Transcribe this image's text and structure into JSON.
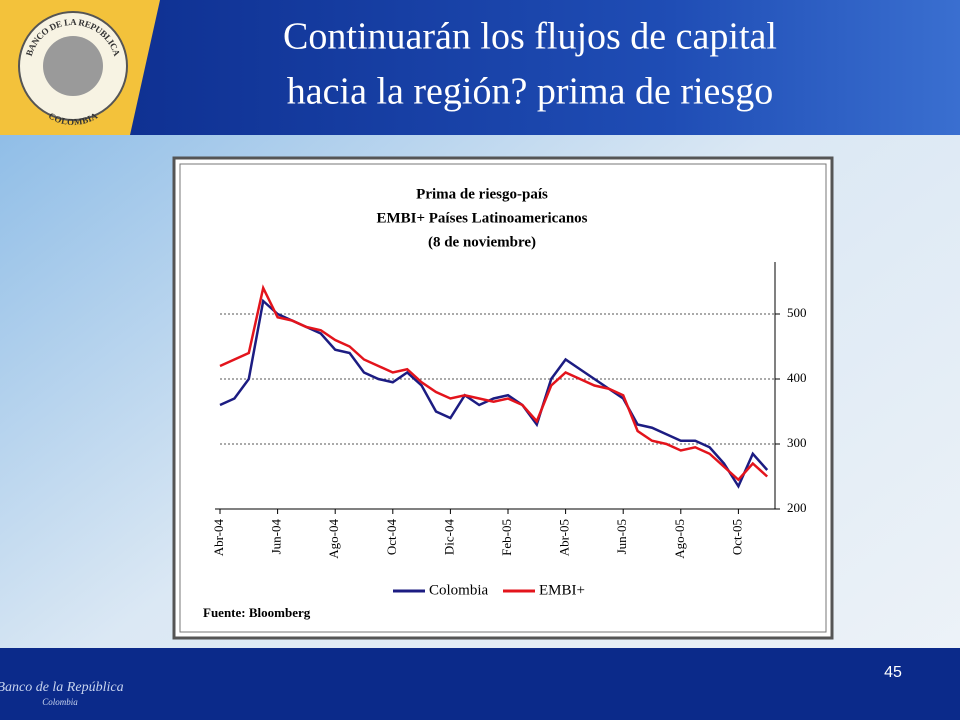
{
  "slide": {
    "title": [
      "Continuarán los flujos de capital",
      "hacia la región? prima de riesgo"
    ],
    "page_number": "45",
    "logo": {
      "top": "BANCO DE LA REPUBLICA",
      "bottom": "COLOMBIA"
    },
    "footer": [
      "Banco de la República",
      "Colombia"
    ]
  },
  "chart_data": {
    "type": "line",
    "title": [
      "Prima de riesgo-país",
      "EMBI+ Países Latinoamericanos",
      "(8 de noviembre)"
    ],
    "source": "Fuente: Bloomberg",
    "categories": [
      "Abr-04",
      null,
      null,
      null,
      "Jun-04",
      null,
      null,
      null,
      "Ago-04",
      null,
      null,
      null,
      "Oct-04",
      null,
      null,
      null,
      "Dic-04",
      null,
      null,
      null,
      "Feb-05",
      null,
      null,
      null,
      "Abr-05",
      null,
      null,
      null,
      "Jun-05",
      null,
      null,
      null,
      "Ago-05",
      null,
      null,
      null,
      "Oct-05",
      null,
      null
    ],
    "series": [
      {
        "name": "Colombia",
        "color": "#1c1c82",
        "values": [
          360,
          370,
          400,
          520,
          500,
          490,
          480,
          470,
          445,
          440,
          410,
          400,
          395,
          410,
          390,
          350,
          340,
          375,
          360,
          370,
          375,
          360,
          330,
          400,
          430,
          415,
          400,
          385,
          370,
          330,
          325,
          315,
          305,
          305,
          295,
          270,
          235,
          285,
          260
        ]
      },
      {
        "name": "EMBI+",
        "color": "#e3141c",
        "values": [
          420,
          430,
          440,
          540,
          495,
          490,
          480,
          475,
          460,
          450,
          430,
          420,
          410,
          415,
          395,
          380,
          370,
          375,
          370,
          365,
          370,
          360,
          335,
          390,
          410,
          400,
          390,
          385,
          375,
          320,
          305,
          300,
          290,
          295,
          285,
          265,
          245,
          270,
          250
        ]
      }
    ],
    "ylim": [
      200,
      580
    ],
    "yticks": [
      200,
      300,
      400,
      500
    ],
    "grid": true,
    "legend": "bottom"
  }
}
